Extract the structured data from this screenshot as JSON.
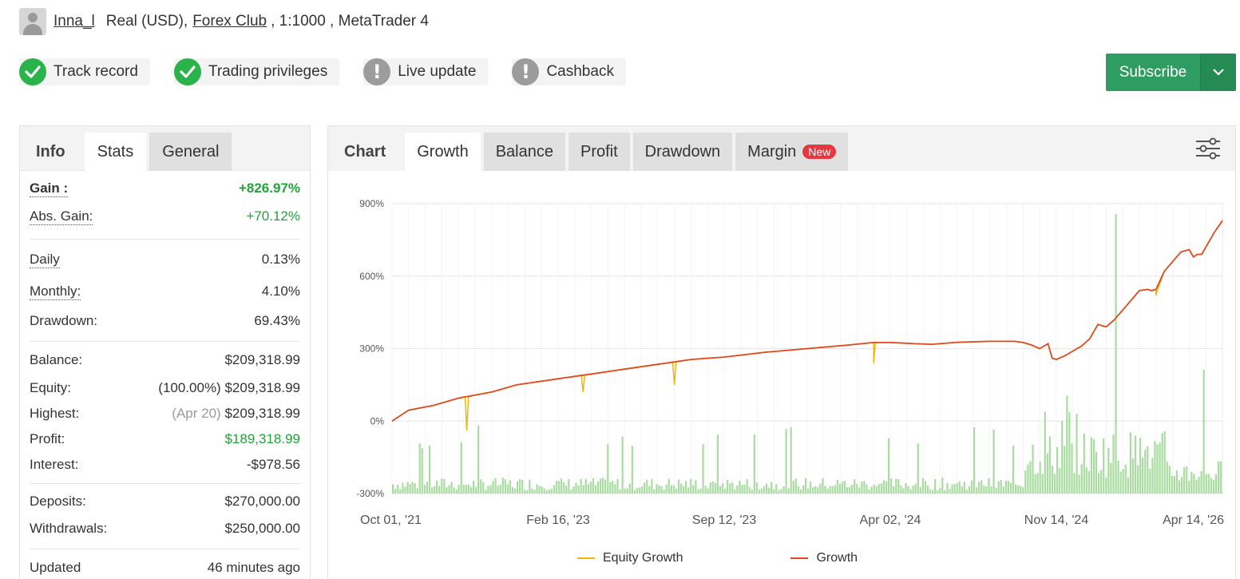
{
  "header": {
    "username": "Inna_l",
    "account_type": "Real (USD),",
    "broker": "Forex Club",
    "details": ", 1:1000 , MetaTrader 4"
  },
  "badges": [
    {
      "label": "Track record",
      "status": "verified",
      "icon": "check-icon"
    },
    {
      "label": "Trading privileges",
      "status": "verified",
      "icon": "check-icon"
    },
    {
      "label": "Live update",
      "status": "warning",
      "icon": "exclamation-icon"
    },
    {
      "label": "Cashback",
      "status": "warning",
      "icon": "exclamation-icon"
    }
  ],
  "subscribe": {
    "label": "Subscribe"
  },
  "left_tabs": {
    "header": "Info",
    "stats": "Stats",
    "general": "General"
  },
  "stats": {
    "gain": {
      "label": "Gain :",
      "value": "+826.97%"
    },
    "abs_gain": {
      "label": "Abs. Gain:",
      "value": "+70.12%"
    },
    "daily": {
      "label": "Daily",
      "value": "0.13%"
    },
    "monthly": {
      "label": "Monthly:",
      "value": "4.10%"
    },
    "drawdown": {
      "label": "Drawdown:",
      "value": "69.43%"
    },
    "balance": {
      "label": "Balance:",
      "value": "$209,318.99"
    },
    "equity": {
      "label": "Equity:",
      "prefix": "(100.00%)",
      "value": "$209,318.99"
    },
    "highest": {
      "label": "Highest:",
      "prefix": "(Apr 20)",
      "value": "$209,318.99"
    },
    "profit": {
      "label": "Profit:",
      "value": "$189,318.99"
    },
    "interest": {
      "label": "Interest:",
      "value": "-$978.56"
    },
    "deposits": {
      "label": "Deposits:",
      "value": "$270,000.00"
    },
    "withdrawals": {
      "label": "Withdrawals:",
      "value": "$250,000.00"
    },
    "updated": {
      "label": "Updated",
      "value": "46 minutes ago"
    }
  },
  "chart_tabs": {
    "header": "Chart",
    "growth": "Growth",
    "balance": "Balance",
    "profit": "Profit",
    "drawdown": "Drawdown",
    "margin": "Margin",
    "new_badge": "New"
  },
  "colors": {
    "green": "#22a33a",
    "subscribe": "#2f9d61",
    "growth_line": "#e04a1f",
    "equity_line": "#f2b705",
    "bars": "#a9dca0",
    "new_badge": "#e5393f"
  },
  "chart_data": {
    "type": "line",
    "title": "",
    "ylabel": "",
    "xlabel": "",
    "ylim": [
      -300,
      900
    ],
    "y_ticks": [
      "900%",
      "600%",
      "300%",
      "0%",
      "-300%"
    ],
    "y_tick_values": [
      900,
      600,
      300,
      0,
      -300
    ],
    "x_ticks": [
      "Oct 01, '21",
      "Feb 16, '23",
      "Sep 12, '23",
      "Apr 02, '24",
      "Nov 14, '24",
      "Apr 14, '26"
    ],
    "legend": [
      "Equity Growth",
      "Growth"
    ],
    "legend_position": "bottom",
    "grid": true,
    "series": [
      {
        "name": "Growth",
        "x": [
          0,
          2,
          5,
          8,
          12,
          15,
          18,
          22,
          25,
          28,
          30,
          33,
          36,
          40,
          45,
          50,
          55,
          58,
          60,
          62,
          63,
          65,
          67,
          68,
          70,
          72,
          75,
          76,
          77,
          78,
          79,
          79.5,
          80,
          81,
          82,
          83,
          84,
          85,
          86,
          87,
          88,
          89,
          90,
          91,
          91.5,
          92,
          93,
          94,
          95,
          96,
          96.5,
          97,
          97.5,
          98,
          99,
          100
        ],
        "y": [
          0,
          45,
          65,
          95,
          120,
          150,
          165,
          185,
          200,
          215,
          225,
          240,
          255,
          265,
          285,
          300,
          315,
          325,
          325,
          322,
          320,
          318,
          323,
          326,
          328,
          330,
          330,
          325,
          315,
          300,
          320,
          260,
          255,
          270,
          290,
          310,
          340,
          400,
          390,
          420,
          460,
          500,
          540,
          545,
          540,
          545,
          620,
          660,
          700,
          710,
          680,
          690,
          690,
          720,
          780,
          830
        ]
      },
      {
        "name": "Equity Growth",
        "note": "tracks Growth closely with brief downward spikes",
        "spikes": [
          {
            "x": 9,
            "y": -40
          },
          {
            "x": 23,
            "y": 120
          },
          {
            "x": 34,
            "y": 150
          },
          {
            "x": 58,
            "y": 240
          },
          {
            "x": 92,
            "y": 520
          }
        ]
      }
    ]
  }
}
